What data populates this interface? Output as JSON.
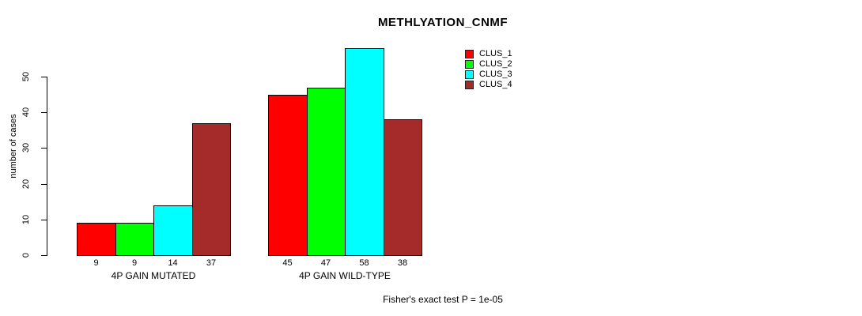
{
  "chart_data": {
    "type": "bar",
    "title": "METHLYATION_CNMF",
    "ylabel": "number of cases",
    "annotation": "Fisher's exact test P = 1e-05",
    "categories": [
      "4P GAIN MUTATED",
      "4P GAIN WILD-TYPE"
    ],
    "series": [
      {
        "name": "CLUS_1",
        "color": "#ff0000",
        "values": [
          9,
          45
        ]
      },
      {
        "name": "CLUS_2",
        "color": "#00ff00",
        "values": [
          9,
          47
        ]
      },
      {
        "name": "CLUS_3",
        "color": "#00ffff",
        "values": [
          14,
          58
        ]
      },
      {
        "name": "CLUS_4",
        "color": "#a52a2a",
        "values": [
          37,
          38
        ]
      }
    ],
    "bar_labels": [
      [
        "9",
        "9",
        "14",
        "37"
      ],
      [
        "45",
        "47",
        "58",
        "38"
      ]
    ],
    "yticks": [
      0,
      10,
      20,
      30,
      40,
      50
    ],
    "ylim": [
      0,
      58
    ],
    "grid": false,
    "legend_position": "top-right",
    "colors": {
      "axis": "#000000",
      "bar_border": "#000000",
      "text": "#000000"
    }
  }
}
